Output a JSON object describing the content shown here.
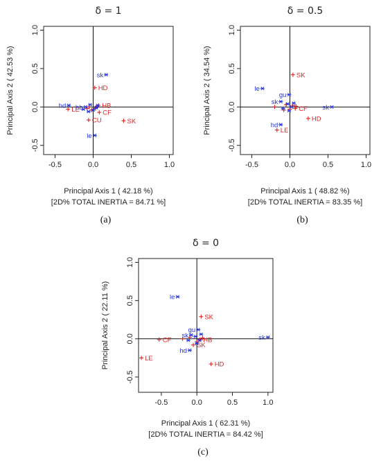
{
  "colors": {
    "row": "#dd2222",
    "col": "#2233dd",
    "axis": "#111111",
    "frame": "#222222"
  },
  "chart_data": [
    {
      "type": "scatter",
      "title": "δ = 1",
      "xlabel": "Principal Axis 1 ( 42.18 %)",
      "ylabel": "Principal Axis 2 ( 42.53 %)",
      "inertia_note": "[2D% TOTAL INERTIA = 84.71 %]",
      "caption": "(a)",
      "xlim": [
        -0.65,
        1.05
      ],
      "ylim": [
        -0.62,
        1.05
      ],
      "xticks": [
        -0.5,
        0.0,
        0.5,
        1.0
      ],
      "yticks": [
        -0.5,
        0.0,
        0.5,
        1.0
      ],
      "tick_labels_x": [
        "-0.5",
        "0.0",
        "0.5",
        "1.0"
      ],
      "tick_labels_y": [
        "-0.5",
        "0.0",
        "0.5",
        "1.0"
      ],
      "series": [
        {
          "name": "",
          "color": "#dd2222",
          "points": [
            {
              "label": "HD",
              "x": 0.02,
              "y": 0.25
            },
            {
              "label": "SK",
              "x": 0.4,
              "y": -0.18
            },
            {
              "label": "LE",
              "x": -0.33,
              "y": -0.03
            },
            {
              "label": "CU",
              "x": -0.06,
              "y": -0.17
            },
            {
              "label": "HB",
              "x": 0.07,
              "y": 0.02
            },
            {
              "label": "CF",
              "x": 0.08,
              "y": -0.07
            },
            {
              "label": "",
              "x": -0.05,
              "y": 0.0
            },
            {
              "label": "",
              "x": -0.02,
              "y": -0.04
            },
            {
              "label": "",
              "x": 0.03,
              "y": -0.02
            },
            {
              "label": "",
              "x": 0.05,
              "y": 0.01
            },
            {
              "label": "",
              "x": -0.08,
              "y": -0.02
            }
          ]
        },
        {
          "name": "",
          "color": "#2233dd",
          "points": [
            {
              "label": "sk",
              "x": 0.17,
              "y": 0.42
            },
            {
              "label": "le",
              "x": 0.02,
              "y": -0.37
            },
            {
              "label": "hd",
              "x": -0.32,
              "y": 0.02
            },
            {
              "label": "hb",
              "x": -0.1,
              "y": 0.0
            },
            {
              "label": "",
              "x": -0.04,
              "y": 0.03
            },
            {
              "label": "",
              "x": 0.0,
              "y": -0.04
            },
            {
              "label": "",
              "x": 0.04,
              "y": -0.01
            },
            {
              "label": "",
              "x": -0.06,
              "y": -0.06
            },
            {
              "label": "",
              "x": 0.06,
              "y": 0.02
            },
            {
              "label": "",
              "x": -0.13,
              "y": -0.03
            }
          ]
        }
      ]
    },
    {
      "type": "scatter",
      "title": "δ = 0.5",
      "xlabel": "Principal Axis 1 ( 48.82 %)",
      "ylabel": "Principal Axis 2 ( 34.54 %)",
      "inertia_note": "[2D% TOTAL INERTIA = 83.35 %]",
      "caption": "(b)",
      "xlim": [
        -0.65,
        1.05
      ],
      "ylim": [
        -0.62,
        1.05
      ],
      "xticks": [
        -0.5,
        0.0,
        0.5,
        1.0
      ],
      "yticks": [
        -0.5,
        0.0,
        0.5,
        1.0
      ],
      "tick_labels_x": [
        "-0.5",
        "0.0",
        "0.5",
        "1.0"
      ],
      "tick_labels_y": [
        "-0.5",
        "0.0",
        "0.5",
        "1.0"
      ],
      "series": [
        {
          "name": "",
          "color": "#dd2222",
          "points": [
            {
              "label": "SK",
              "x": 0.04,
              "y": 0.42
            },
            {
              "label": "HD",
              "x": 0.24,
              "y": -0.15
            },
            {
              "label": "LE",
              "x": -0.17,
              "y": -0.3
            },
            {
              "label": "CF",
              "x": 0.07,
              "y": -0.02
            },
            {
              "label": "",
              "x": -0.2,
              "y": 0.0
            },
            {
              "label": "",
              "x": -0.05,
              "y": 0.03
            },
            {
              "label": "",
              "x": 0.0,
              "y": -0.03
            },
            {
              "label": "",
              "x": 0.04,
              "y": 0.02
            },
            {
              "label": "",
              "x": -0.08,
              "y": -0.04
            },
            {
              "label": "",
              "x": 0.08,
              "y": 0.01
            }
          ]
        },
        {
          "name": "",
          "color": "#2233dd",
          "points": [
            {
              "label": "le",
              "x": -0.36,
              "y": 0.24
            },
            {
              "label": "sk",
              "x": 0.55,
              "y": 0.0
            },
            {
              "label": "hd",
              "x": -0.12,
              "y": -0.23
            },
            {
              "label": "gu",
              "x": -0.01,
              "y": 0.16
            },
            {
              "label": "sk",
              "x": -0.12,
              "y": 0.07
            },
            {
              "label": "",
              "x": -0.03,
              "y": 0.04
            },
            {
              "label": "",
              "x": 0.02,
              "y": 0.0
            },
            {
              "label": "",
              "x": -0.09,
              "y": -0.02
            },
            {
              "label": "",
              "x": 0.05,
              "y": 0.05
            },
            {
              "label": "",
              "x": -0.01,
              "y": -0.05
            }
          ]
        }
      ]
    },
    {
      "type": "scatter",
      "title": "δ = 0",
      "xlabel": "Principal Axis 1 ( 62.31 %)",
      "ylabel": "Principal Axis 2 ( 22.11 %)",
      "inertia_note": "[2D% TOTAL INERTIA = 84.42 %]",
      "caption": "(c)",
      "xlim": [
        -0.82,
        1.07
      ],
      "ylim": [
        -0.7,
        1.05
      ],
      "xticks": [
        -0.5,
        0.0,
        0.5,
        1.0
      ],
      "yticks": [
        -0.5,
        0.0,
        0.5,
        1.0
      ],
      "tick_labels_x": [
        "-0.5",
        "0.0",
        "0.5",
        "1.0"
      ],
      "tick_labels_y": [
        "-0.5",
        "0.0",
        "0.5",
        "1.0"
      ],
      "series": [
        {
          "name": "",
          "color": "#dd2222",
          "points": [
            {
              "label": "SK",
              "x": 0.06,
              "y": 0.29
            },
            {
              "label": "LE",
              "x": -0.78,
              "y": -0.25
            },
            {
              "label": "HD",
              "x": 0.2,
              "y": -0.33
            },
            {
              "label": "CF",
              "x": -0.53,
              "y": -0.01
            },
            {
              "label": "HB",
              "x": 0.04,
              "y": -0.01
            },
            {
              "label": "SK",
              "x": -0.05,
              "y": -0.08
            },
            {
              "label": "",
              "x": -0.2,
              "y": 0.0
            },
            {
              "label": "",
              "x": -0.1,
              "y": 0.02
            },
            {
              "label": "",
              "x": 0.0,
              "y": -0.04
            },
            {
              "label": "",
              "x": 0.08,
              "y": 0.01
            }
          ]
        },
        {
          "name": "",
          "color": "#2233dd",
          "points": [
            {
              "label": "le",
              "x": -0.27,
              "y": 0.55
            },
            {
              "label": "sk",
              "x": 1.0,
              "y": 0.02
            },
            {
              "label": "hd",
              "x": -0.1,
              "y": -0.15
            },
            {
              "label": "gu",
              "x": 0.02,
              "y": 0.12
            },
            {
              "label": "sk",
              "x": -0.08,
              "y": 0.05
            },
            {
              "label": "",
              "x": -0.02,
              "y": 0.03
            },
            {
              "label": "",
              "x": 0.04,
              "y": -0.02
            },
            {
              "label": "",
              "x": -0.12,
              "y": -0.02
            },
            {
              "label": "",
              "x": 0.06,
              "y": 0.06
            },
            {
              "label": "",
              "x": 0.0,
              "y": -0.06
            }
          ]
        }
      ]
    }
  ]
}
